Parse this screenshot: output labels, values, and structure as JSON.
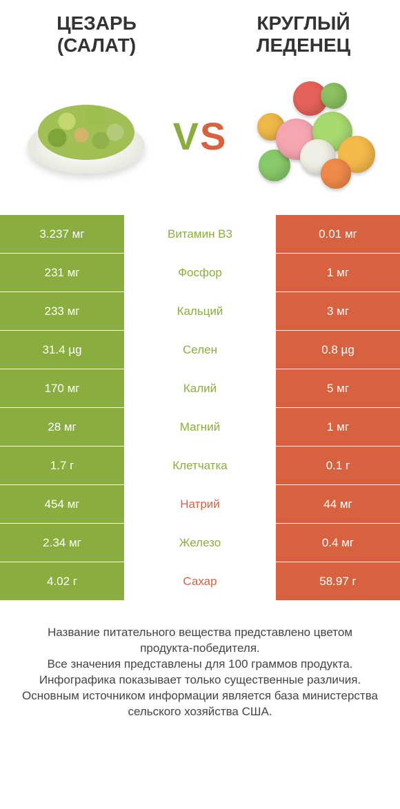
{
  "colors": {
    "left_bg": "#8aad3f",
    "right_bg": "#d8623f",
    "left_text": "#8aad3f",
    "right_text": "#d8623f"
  },
  "header": {
    "left_title_line1": "Цезарь",
    "left_title_line2": "(салат)",
    "right_title_line1": "Круглый",
    "right_title_line2": "леденец"
  },
  "vs": {
    "v": "V",
    "s": "S"
  },
  "rows": [
    {
      "left": "3.237 мг",
      "mid": "Витамин B3",
      "right": "0.01 мг",
      "winner": "left"
    },
    {
      "left": "231 мг",
      "mid": "Фосфор",
      "right": "1 мг",
      "winner": "left"
    },
    {
      "left": "233 мг",
      "mid": "Кальций",
      "right": "3 мг",
      "winner": "left"
    },
    {
      "left": "31.4 µg",
      "mid": "Селен",
      "right": "0.8 µg",
      "winner": "left"
    },
    {
      "left": "170 мг",
      "mid": "Калий",
      "right": "5 мг",
      "winner": "left"
    },
    {
      "left": "28 мг",
      "mid": "Магний",
      "right": "1 мг",
      "winner": "left"
    },
    {
      "left": "1.7 г",
      "mid": "Клетчатка",
      "right": "0.1 г",
      "winner": "left"
    },
    {
      "left": "454 мг",
      "mid": "Натрий",
      "right": "44 мг",
      "winner": "right"
    },
    {
      "left": "2.34 мг",
      "mid": "Железо",
      "right": "0.4 мг",
      "winner": "left"
    },
    {
      "left": "4.02 г",
      "mid": "Сахар",
      "right": "58.97 г",
      "winner": "right"
    }
  ],
  "footer": {
    "line1": "Название питательного вещества представлено цветом продукта-победителя.",
    "line2": "Все значения представлены для 100 граммов продукта.",
    "line3": "Инфографика показывает только существенные различия.",
    "line4": "Основным источником информации является база министерства сельского хозяйства США."
  }
}
